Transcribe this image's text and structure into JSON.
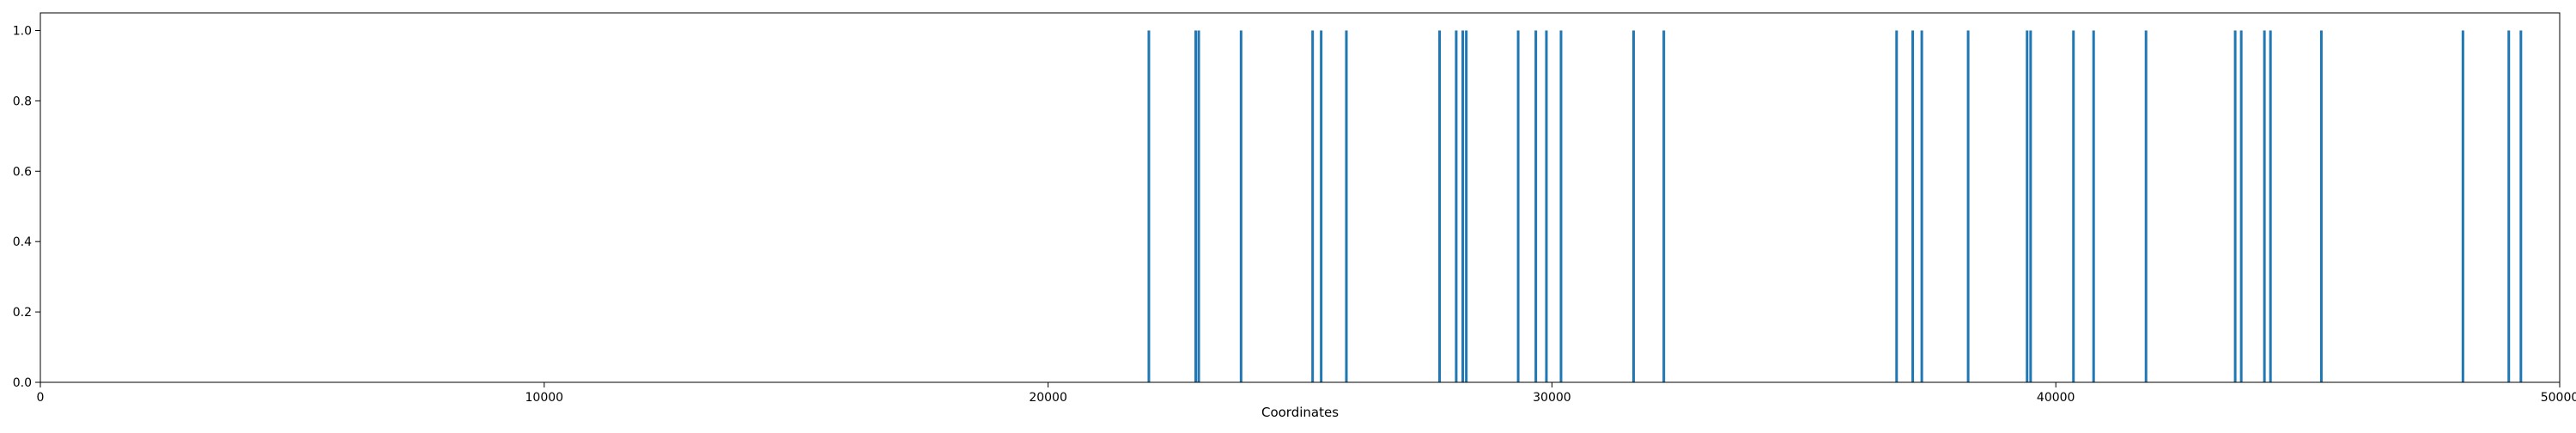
{
  "chart_data": {
    "type": "bar",
    "title": "",
    "xlabel": "Coordinates",
    "ylabel": "",
    "xlim": [
      0,
      50000
    ],
    "ylim": [
      0,
      1.05
    ],
    "grid": false,
    "color": "#1f77b4",
    "x_ticks": [
      0,
      10000,
      20000,
      30000,
      40000,
      50000
    ],
    "x_tick_labels": [
      "0",
      "10000",
      "20000",
      "30000",
      "40000",
      "50000"
    ],
    "y_ticks": [
      0.0,
      0.2,
      0.4,
      0.6,
      0.8,
      1.0
    ],
    "y_tick_labels": [
      "0.0",
      "0.2",
      "0.4",
      "0.6",
      "0.8",
      "1.0"
    ],
    "x": [
      22000,
      22930,
      22990,
      23830,
      25250,
      25420,
      25920,
      27770,
      28100,
      28230,
      28300,
      29330,
      29680,
      29890,
      30180,
      31620,
      32220,
      36840,
      37160,
      37340,
      38260,
      39430,
      39500,
      40350,
      40750,
      41790,
      43560,
      43680,
      44140,
      44260,
      45270,
      48080,
      48990,
      49230
    ],
    "values": [
      1,
      1,
      1,
      1,
      1,
      1,
      1,
      1,
      1,
      1,
      1,
      1,
      1,
      1,
      1,
      1,
      1,
      1,
      1,
      1,
      1,
      1,
      1,
      1,
      1,
      1,
      1,
      1,
      1,
      1,
      1,
      1,
      1,
      1
    ]
  }
}
